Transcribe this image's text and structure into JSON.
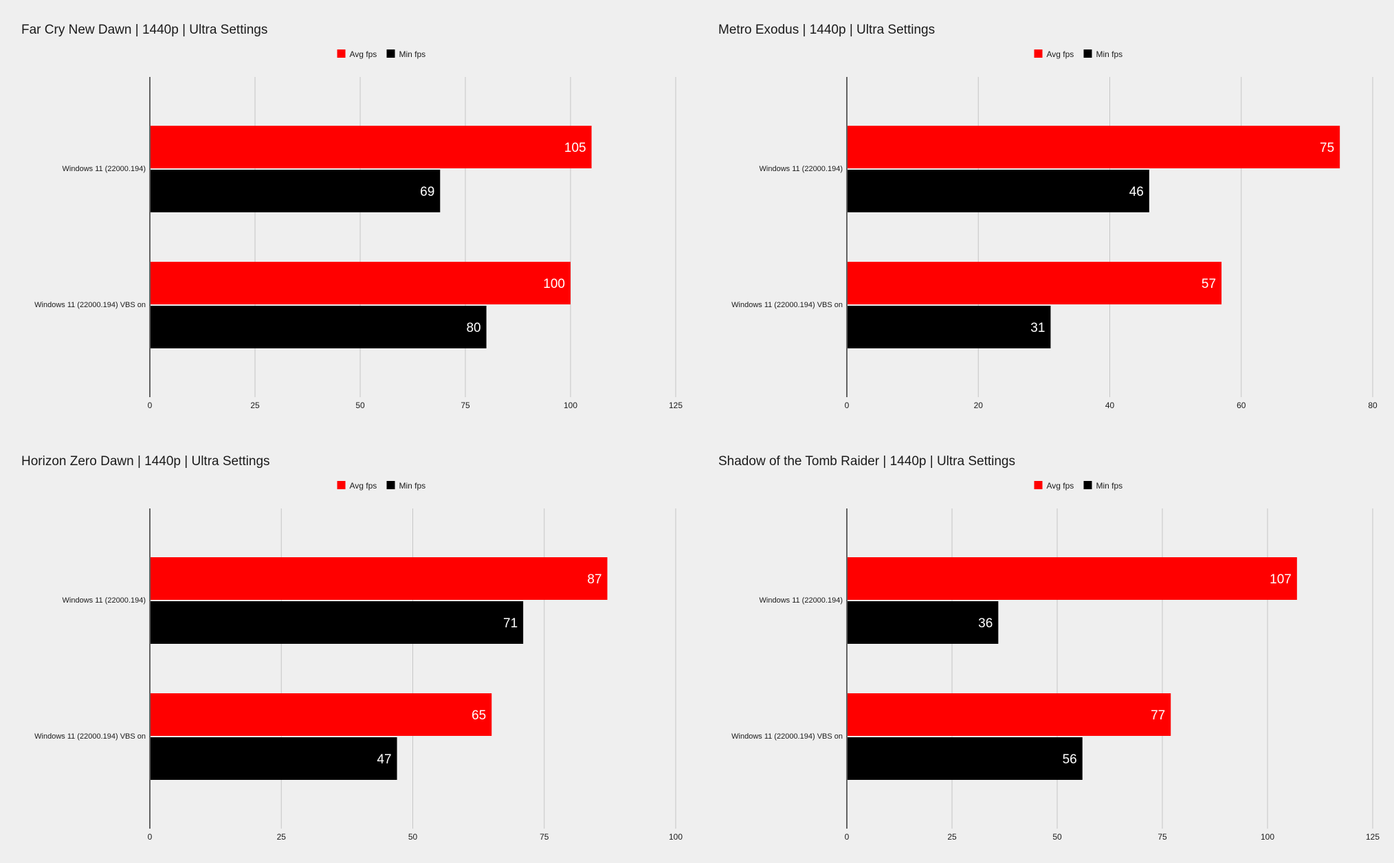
{
  "colors": {
    "background": "#efefef",
    "avg": "#ff0000",
    "min": "#000000",
    "grid": "#c6c6c6",
    "axis": "#333333",
    "label_text": "#ffffff",
    "text": "#1a1a1a"
  },
  "chart_data": [
    {
      "type": "bar",
      "orientation": "horizontal",
      "title": "Far Cry New Dawn | 1440p | Ultra Settings",
      "categories": [
        "Windows 11 (22000.194)",
        "Windows 11 (22000.194) VBS on"
      ],
      "series": [
        {
          "name": "Avg fps",
          "color": "#ff0000",
          "values": [
            105,
            100
          ]
        },
        {
          "name": "Min fps",
          "color": "#000000",
          "values": [
            69,
            80
          ]
        }
      ],
      "xlim": [
        0,
        125
      ],
      "xticks": [
        0,
        25,
        50,
        75,
        100,
        125
      ],
      "grid": true,
      "legend": "top-center",
      "data_labels": true
    },
    {
      "type": "bar",
      "orientation": "horizontal",
      "title": "Metro Exodus | 1440p | Ultra Settings",
      "categories": [
        "Windows 11 (22000.194)",
        "Windows 11 (22000.194) VBS on"
      ],
      "series": [
        {
          "name": "Avg fps",
          "color": "#ff0000",
          "values": [
            75,
            57
          ]
        },
        {
          "name": "Min fps",
          "color": "#000000",
          "values": [
            46,
            31
          ]
        }
      ],
      "xlim": [
        0,
        80
      ],
      "xticks": [
        0,
        20,
        40,
        60,
        80
      ],
      "grid": true,
      "legend": "top-center",
      "data_labels": true
    },
    {
      "type": "bar",
      "orientation": "horizontal",
      "title": "Horizon Zero Dawn | 1440p | Ultra Settings",
      "categories": [
        "Windows 11 (22000.194)",
        "Windows 11 (22000.194) VBS on"
      ],
      "series": [
        {
          "name": "Avg fps",
          "color": "#ff0000",
          "values": [
            87,
            65
          ]
        },
        {
          "name": "Min fps",
          "color": "#000000",
          "values": [
            71,
            47
          ]
        }
      ],
      "xlim": [
        0,
        100
      ],
      "xticks": [
        0,
        25,
        50,
        75,
        100
      ],
      "grid": true,
      "legend": "top-center",
      "data_labels": true
    },
    {
      "type": "bar",
      "orientation": "horizontal",
      "title": "Shadow of the Tomb Raider | 1440p | Ultra Settings",
      "categories": [
        "Windows 11 (22000.194)",
        "Windows 11 (22000.194) VBS on"
      ],
      "series": [
        {
          "name": "Avg fps",
          "color": "#ff0000",
          "values": [
            107,
            77
          ]
        },
        {
          "name": "Min fps",
          "color": "#000000",
          "values": [
            36,
            56
          ]
        }
      ],
      "xlim": [
        0,
        125
      ],
      "xticks": [
        0,
        25,
        50,
        75,
        100,
        125
      ],
      "grid": true,
      "legend": "top-center",
      "data_labels": true
    }
  ]
}
